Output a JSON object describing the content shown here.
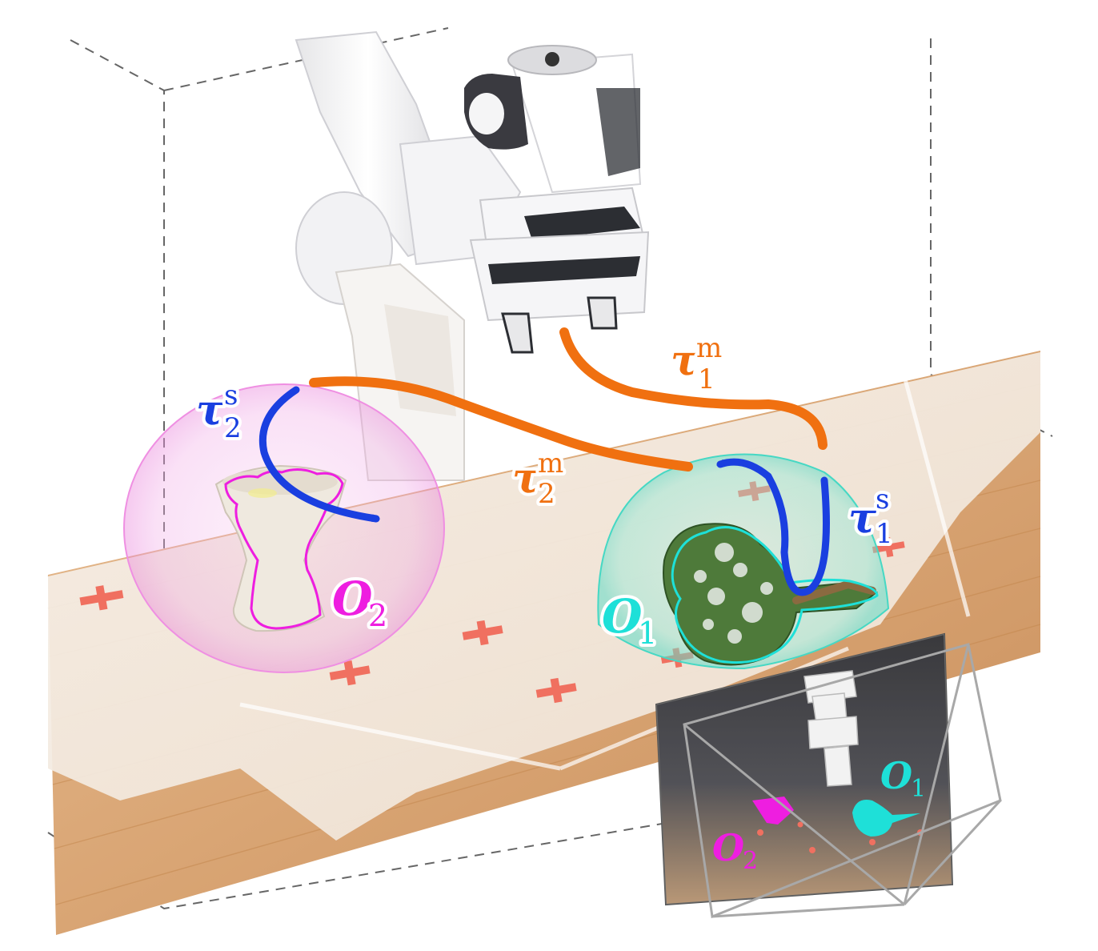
{
  "colors": {
    "manipulation": "#f07010",
    "stabilization": "#1a3fe0",
    "object1": "#1ee0d8",
    "object2": "#ee1ee0",
    "table_wood": "#d9a878",
    "pointcloud": "#f3ebe2",
    "markers": "#f07060"
  },
  "labels": {
    "tau1m": {
      "main": "τ",
      "sub": "1",
      "sup": "m"
    },
    "tau2m": {
      "main": "τ",
      "sub": "2",
      "sup": "m"
    },
    "tau1s": {
      "main": "τ",
      "sub": "1",
      "sup": "s"
    },
    "tau2s": {
      "main": "τ",
      "sub": "2",
      "sup": "s"
    },
    "o1": {
      "main": "O",
      "sub": "1"
    },
    "o2": {
      "main": "O",
      "sub": "2"
    }
  },
  "camera_view": {
    "o1": {
      "main": "O",
      "sub": "1"
    },
    "o2": {
      "main": "O",
      "sub": "2"
    }
  }
}
